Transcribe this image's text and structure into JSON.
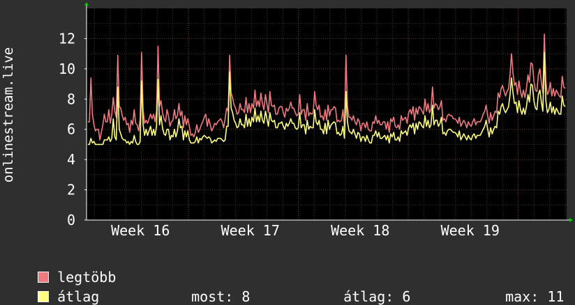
{
  "chart_data": {
    "type": "line",
    "ylabel": "onlinestream.live",
    "xlabel": "",
    "ylim": [
      0,
      14
    ],
    "yticks": [
      0,
      2,
      4,
      6,
      8,
      10,
      12
    ],
    "xtick_labels": [
      "Week 16",
      "Week 17",
      "Week 18",
      "Week 19"
    ],
    "grid": true,
    "legend_placement": "bottom-left",
    "colors": {
      "background": "#2f2f2f",
      "plot": "#000000",
      "max": "#f07a80",
      "avg": "#ffff80",
      "grid": "#444444",
      "axis": "#ffffff"
    },
    "series": [
      {
        "name": "legtöbb",
        "values": [
          6.5,
          6.5,
          9.4,
          7,
          6.3,
          5.9,
          6,
          6,
          5.3,
          5.8,
          6.3,
          7,
          6.5,
          6.5,
          7.3,
          6.4,
          7,
          8.1,
          7.2,
          6.8,
          10.9,
          7.5,
          7.4,
          6.9,
          6.6,
          6.8,
          6.3,
          6.4,
          5.8,
          6.6,
          6.3,
          7.3,
          6.4,
          6.3,
          5.9,
          6.7,
          11.1,
          7.3,
          6.4,
          6.6,
          6.4,
          6.7,
          7,
          6.7,
          7,
          6.5,
          7.2,
          11.5,
          7.5,
          7.9,
          7.1,
          6.7,
          6.5,
          7.3,
          6.9,
          6.2,
          6.5,
          6.6,
          7.3,
          6.7,
          6.9,
          7.7,
          6.9,
          7.2,
          6.1,
          6.9,
          6.3,
          6.7,
          6.2,
          5.6,
          5.7,
          5.5,
          5.8,
          6.3,
          5.8,
          6,
          6.3,
          6.5,
          6.8,
          7,
          6.2,
          6.7,
          6.3,
          5.9,
          6.1,
          6.4,
          6.3,
          6.5,
          6.6,
          6.7,
          6.5,
          6.1,
          6.7,
          7.4,
          7.2,
          10.9,
          8.4,
          8.1,
          7.6,
          7.4,
          7,
          7.1,
          7.7,
          7.3,
          7.3,
          7.1,
          8.1,
          7.1,
          7.7,
          7.1,
          7.7,
          7.4,
          8.6,
          7.5,
          7.9,
          7.5,
          8.4,
          7.7,
          7.3,
          8.3,
          7.7,
          7.1,
          8.5,
          7.6,
          7.5,
          7.6,
          7,
          7,
          7.4,
          7.5,
          7.5,
          7.1,
          6.8,
          7.4,
          7.2,
          7.4,
          7.8,
          7.4,
          7.4,
          7.1,
          6.9,
          7,
          8.3,
          7,
          7.3,
          7.3,
          6.6,
          7.7,
          6.9,
          7.1,
          7,
          7.1,
          8.5,
          7.6,
          7.3,
          7.6,
          6.8,
          6.9,
          6.6,
          7.3,
          6.6,
          7.6,
          6.9,
          7.3,
          7.3,
          7.5,
          7.4,
          6.5,
          6.6,
          6.5,
          6.6,
          7.3,
          6.2,
          10.9,
          7.5,
          6.8,
          6.8,
          6.6,
          6.9,
          6.5,
          6.3,
          6.7,
          6.5,
          5.9,
          6.4,
          6.4,
          6.1,
          6.5,
          6,
          5.9,
          5.9,
          6.5,
          6.4,
          6.9,
          6.4,
          6.6,
          6.3,
          6.3,
          6.5,
          6.5,
          6,
          6.5,
          5.8,
          6.7,
          6.5,
          6.8,
          6.2,
          6.1,
          6.3,
          6,
          6.9,
          6.6,
          6.7,
          6.8,
          6.4,
          7.1,
          7.3,
          7,
          7.5,
          6.6,
          7.4,
          7,
          7.5,
          7.4,
          7.2,
          7,
          8,
          7.2,
          7.7,
          7.1,
          7.3,
          8.8,
          7.4,
          7.7,
          7.6,
          7.3,
          7.5,
          7.9,
          6.6,
          6.7,
          6.5,
          6.9,
          7,
          6.9,
          6.9,
          6.7,
          6.7,
          6.6,
          6.4,
          6.8,
          6.2,
          6.4,
          6.6,
          6.4,
          6.1,
          6.5,
          6.3,
          6.2,
          6.5,
          6.7,
          6.3,
          6.5,
          6.5,
          6.5,
          6.7,
          7,
          7.2,
          7.6,
          6.9,
          6.4,
          7.1,
          6.6,
          6.9,
          7.2,
          7.1,
          8.4,
          8.1,
          8.7,
          8.9,
          8.5,
          8.2,
          8.5,
          8.7,
          9.6,
          11,
          9.7,
          8.9,
          9.1,
          8.3,
          9.2,
          8.5,
          8.1,
          8.6,
          8.1,
          8.7,
          9.6,
          9.1,
          10.4,
          10.3,
          9.2,
          8.6,
          8.5,
          9.6,
          10,
          9.1,
          8.4,
          12.3,
          9.2,
          8.3,
          8.5,
          9.1,
          8.2,
          8.7,
          8.2,
          8.6,
          8.4,
          8.2,
          8.1,
          9.5,
          8.8,
          8.7
        ]
      },
      {
        "name": "átlag",
        "values": [
          5,
          5,
          5.4,
          5.1,
          5.2,
          5,
          5,
          5,
          5,
          5,
          5,
          5.3,
          5.3,
          5.3,
          5.5,
          5.2,
          5.4,
          6.7,
          5.5,
          5.3,
          8.8,
          6,
          5.7,
          5.4,
          5.3,
          5.3,
          5.1,
          5.2,
          5,
          5.2,
          5.1,
          5.6,
          5.2,
          5,
          5,
          5.2,
          9.2,
          6.3,
          5.6,
          6,
          5.6,
          5.9,
          6.2,
          5.6,
          6,
          5.6,
          6.2,
          9.3,
          6.3,
          6.9,
          6.1,
          5.7,
          5.6,
          6,
          6,
          5.3,
          5.6,
          5.5,
          6,
          5.5,
          5.9,
          6.7,
          6.1,
          6.2,
          5.3,
          5.9,
          5.5,
          5.9,
          5.3,
          5.1,
          5.1,
          5.1,
          5.2,
          5.5,
          5.1,
          5.4,
          5.3,
          5.5,
          5.6,
          5.5,
          5.4,
          5.5,
          5.4,
          5.1,
          5.2,
          5.3,
          5.2,
          5.4,
          5.4,
          5.4,
          5.3,
          5.2,
          5.3,
          6.2,
          6.2,
          9.8,
          7.4,
          7.1,
          6.6,
          6.4,
          6.1,
          6.2,
          6.7,
          6.3,
          6.3,
          6.1,
          7,
          6.2,
          6.7,
          6.2,
          6.8,
          6.5,
          7.4,
          6.5,
          6.9,
          6.5,
          7.2,
          6.6,
          6.4,
          7.2,
          6.7,
          6.2,
          7.1,
          6.6,
          6.5,
          6.6,
          6.1,
          6.1,
          6.4,
          6.4,
          6.5,
          6.2,
          6,
          6.4,
          6.2,
          6.4,
          6.7,
          6.4,
          6.4,
          6.1,
          6,
          6.1,
          7.1,
          6.1,
          6.3,
          6.3,
          5.7,
          6.6,
          6,
          6.2,
          6.1,
          6.1,
          7.3,
          6.5,
          6.3,
          6.6,
          6,
          6,
          5.7,
          6.4,
          5.7,
          6.6,
          6,
          6.3,
          6.4,
          6.5,
          6.4,
          5.7,
          5.8,
          5.6,
          5.7,
          6.2,
          5.4,
          8.5,
          6.5,
          5.9,
          5.8,
          5.7,
          6,
          5.7,
          5.4,
          5.8,
          5.7,
          5.2,
          5.5,
          5.5,
          5.2,
          5.6,
          5.3,
          5.1,
          5.1,
          5.6,
          5.6,
          5.9,
          5.5,
          5.8,
          5.4,
          5.4,
          5.5,
          5.6,
          5.3,
          5.6,
          5.1,
          5.7,
          5.5,
          5.8,
          5.3,
          5.3,
          5.5,
          5.2,
          5.9,
          5.7,
          5.8,
          5.9,
          5.6,
          6.1,
          6.3,
          6.1,
          6.4,
          5.7,
          6.4,
          6,
          6.5,
          6.4,
          6.2,
          6.1,
          6.9,
          6.2,
          6.6,
          6.1,
          6.3,
          7.6,
          6.3,
          6.6,
          6.6,
          6.2,
          6.4,
          6.8,
          5.7,
          5.8,
          5.6,
          5.9,
          6,
          6,
          5.9,
          5.8,
          5.8,
          5.7,
          5.5,
          5.9,
          5.3,
          5.5,
          5.7,
          5.5,
          5.3,
          5.6,
          5.4,
          5.3,
          5.6,
          5.7,
          5.4,
          5.6,
          5.6,
          5.6,
          5.8,
          6,
          6.2,
          6.6,
          6,
          5.5,
          6.1,
          5.7,
          6,
          6.2,
          6.1,
          7.2,
          7,
          7.5,
          7.7,
          7.3,
          7.1,
          7.3,
          7.5,
          8.3,
          9.4,
          8.4,
          7.7,
          7.8,
          7.1,
          7.9,
          7.3,
          7,
          7.4,
          7,
          7.5,
          8.3,
          7.8,
          9,
          8.9,
          7.9,
          7.4,
          7.3,
          8.3,
          8.6,
          7.8,
          7.2,
          11.1,
          7.9,
          7.1,
          7.3,
          7.8,
          7.1,
          7.5,
          7,
          7.4,
          7.2,
          7,
          7,
          8.2,
          7.6,
          7.5
        ]
      }
    ]
  },
  "legend": {
    "max_label": "legtöbb",
    "avg_label": "átlag"
  },
  "stats": {
    "now_label": "most:",
    "now_value": "8",
    "avg_label": "átlag:",
    "avg_value": "6",
    "max_label": "max:",
    "max_value": "11"
  }
}
